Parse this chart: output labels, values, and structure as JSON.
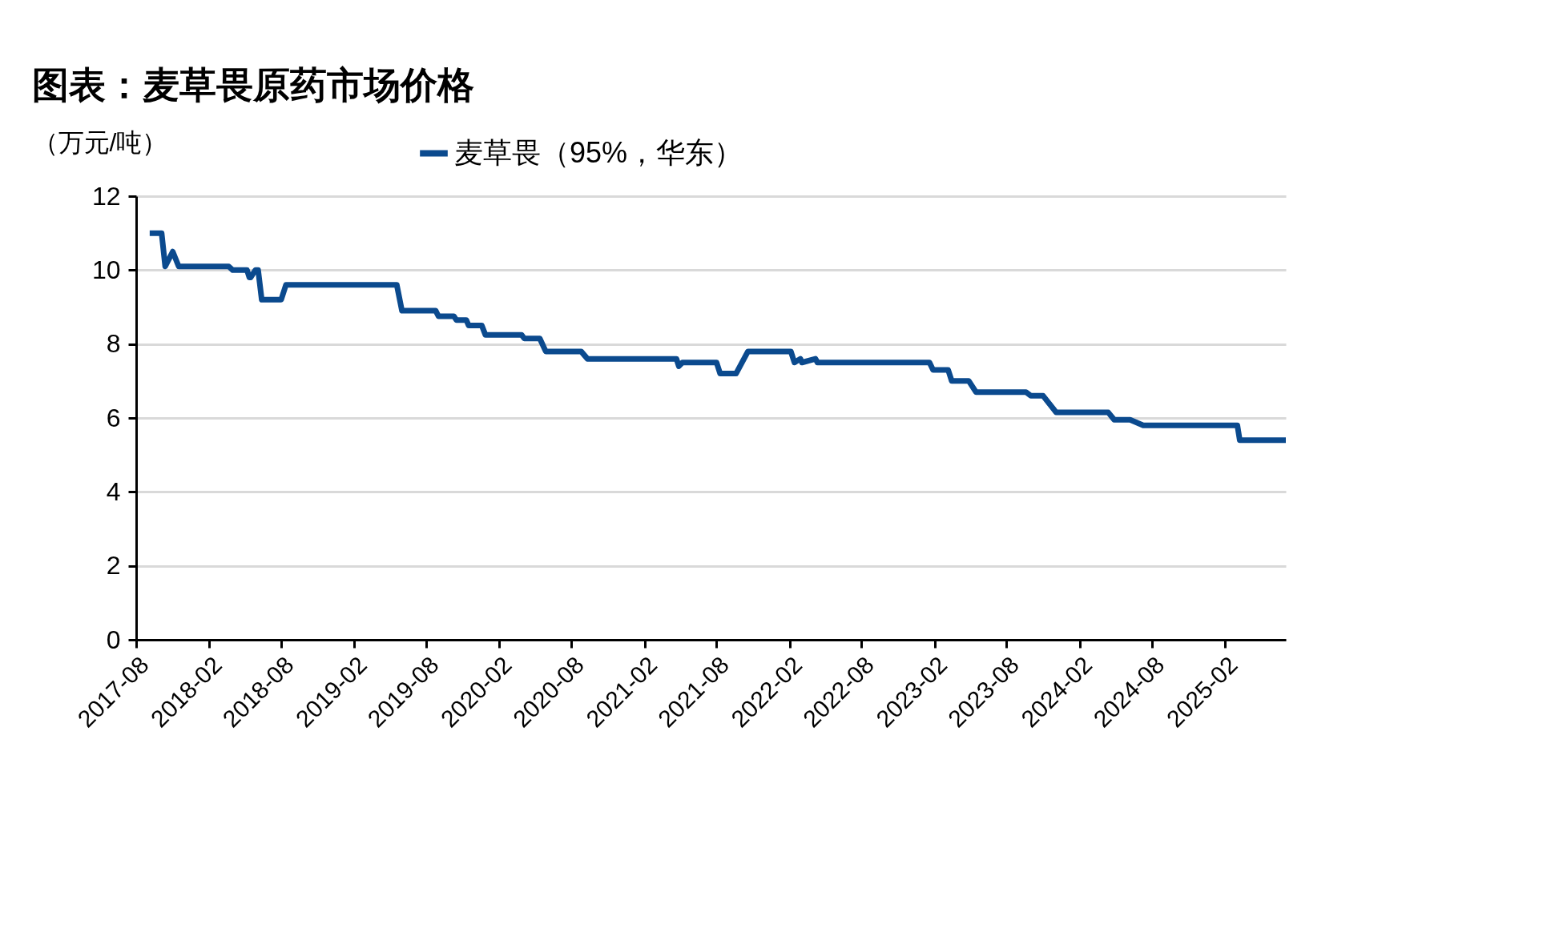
{
  "chart_data": {
    "type": "line",
    "title": "图表：麦草畏原药市场价格",
    "ylabel": "（万元/吨）",
    "legend": "top",
    "grid": "y",
    "xlim": [
      "2017-08",
      "2025-07-04"
    ],
    "xticks": [
      "2017-08",
      "2018-02",
      "2018-08",
      "2019-02",
      "2019-08",
      "2020-02",
      "2020-08",
      "2021-02",
      "2021-08",
      "2022-02",
      "2022-08",
      "2023-02",
      "2023-08",
      "2024-02",
      "2024-08",
      "2025-02"
    ],
    "ylim": [
      0,
      12
    ],
    "yticks": [
      0,
      2,
      4,
      6,
      8,
      10,
      12
    ],
    "series": [
      {
        "name": "麦草畏（95%，华东）",
        "color": "#0b4a8e",
        "x": [
          "2017-09-04",
          "2017-10-04",
          "2017-10-13",
          "2017-11-01",
          "2017-11-16",
          "2018-03-22",
          "2018-04-01",
          "2018-05-07",
          "2018-05-13",
          "2018-05-16",
          "2018-05-28",
          "2018-06-04",
          "2018-06-13",
          "2018-08-01",
          "2018-08-13",
          "2019-05-19",
          "2019-06-01",
          "2019-08-25",
          "2019-09-01",
          "2019-10-10",
          "2019-10-16",
          "2019-11-10",
          "2019-11-16",
          "2019-12-19",
          "2019-12-28",
          "2020-03-28",
          "2020-04-04",
          "2020-05-13",
          "2020-05-28",
          "2020-08-25",
          "2020-09-10",
          "2021-04-22",
          "2021-04-28",
          "2021-05-07",
          "2021-08-01",
          "2021-08-10",
          "2021-09-19",
          "2021-10-19",
          "2022-02-04",
          "2022-02-13",
          "2022-02-28",
          "2022-03-04",
          "2022-04-07",
          "2022-04-12",
          "2023-01-19",
          "2023-01-28",
          "2023-03-07",
          "2023-03-16",
          "2023-04-28",
          "2023-05-16",
          "2023-09-19",
          "2023-10-01",
          "2023-11-01",
          "2023-12-04",
          "2024-04-13",
          "2024-04-28",
          "2024-06-07",
          "2024-07-10",
          "2025-03-04",
          "2025-03-10",
          "2025-07-04"
        ],
        "values": [
          11.0,
          11.0,
          10.1,
          10.5,
          10.1,
          10.1,
          10.0,
          10.0,
          9.8,
          9.8,
          10.0,
          10.0,
          9.2,
          9.2,
          9.6,
          9.6,
          8.9,
          8.9,
          8.75,
          8.75,
          8.65,
          8.65,
          8.5,
          8.5,
          8.25,
          8.25,
          8.15,
          8.15,
          7.8,
          7.8,
          7.6,
          7.6,
          7.4,
          7.5,
          7.5,
          7.2,
          7.2,
          7.8,
          7.8,
          7.5,
          7.6,
          7.5,
          7.6,
          7.5,
          7.5,
          7.3,
          7.3,
          7.0,
          7.0,
          6.7,
          6.7,
          6.6,
          6.6,
          6.15,
          6.15,
          5.95,
          5.95,
          5.8,
          5.8,
          5.4,
          5.4
        ]
      }
    ]
  }
}
